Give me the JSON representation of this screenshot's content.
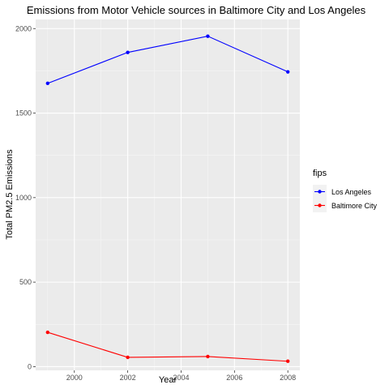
{
  "chart_data": {
    "type": "line",
    "title": "Emissions from Motor Vehicle sources in Baltimore City and Los Angeles",
    "xlabel": "Year",
    "ylabel": "Total PM2.5 Emissions",
    "x": [
      1999,
      2002,
      2005,
      2008
    ],
    "xlim": [
      1998.55,
      2008.45
    ],
    "ylim": [
      -22,
      2054
    ],
    "x_ticks": [
      2000,
      2002,
      2004,
      2006,
      2008
    ],
    "y_ticks": [
      0,
      500,
      1000,
      1500,
      2000
    ],
    "grid": true,
    "legend": {
      "title": "fips",
      "placement": "right"
    },
    "series": [
      {
        "name": "Los Angeles",
        "color": "#0000ff",
        "values": [
          1676,
          1859,
          1955,
          1744
        ]
      },
      {
        "name": "Baltimore City",
        "color": "#ff0000",
        "values": [
          203,
          55,
          60,
          32
        ]
      }
    ]
  }
}
